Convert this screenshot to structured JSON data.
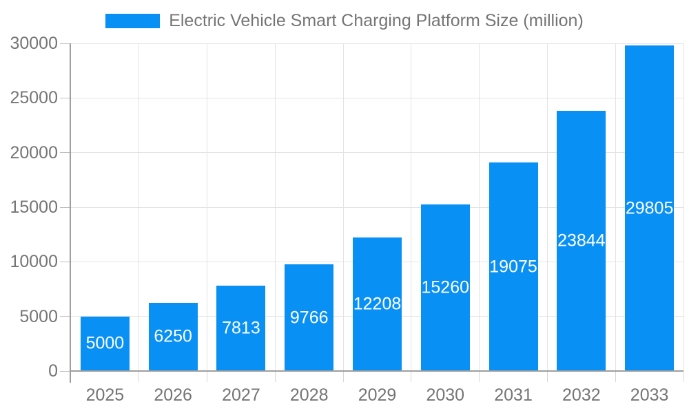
{
  "chart_data": {
    "type": "bar",
    "title": "Electric Vehicle Smart Charging Platform Size (million)",
    "legend_entries": [
      "Electric Vehicle Smart Charging Platform Size (million)"
    ],
    "legend_position": "top",
    "categories": [
      "2025",
      "2026",
      "2027",
      "2028",
      "2029",
      "2030",
      "2031",
      "2032",
      "2033"
    ],
    "values": [
      5000,
      6250,
      7813,
      9766,
      12208,
      15260,
      19075,
      23844,
      29805
    ],
    "bar_labels_shown": true,
    "xlabel": "",
    "ylabel": "",
    "ylim": [
      0,
      30000
    ],
    "yticks": [
      0,
      5000,
      10000,
      15000,
      20000,
      25000,
      30000
    ],
    "grid": true,
    "colors": {
      "bar": "#0990F5",
      "bar_label": "#ffffff",
      "axis_text": "#757575",
      "gridline": "#e3e3e3",
      "axis_line": "#9e9e9e",
      "background": "#ffffff"
    }
  }
}
